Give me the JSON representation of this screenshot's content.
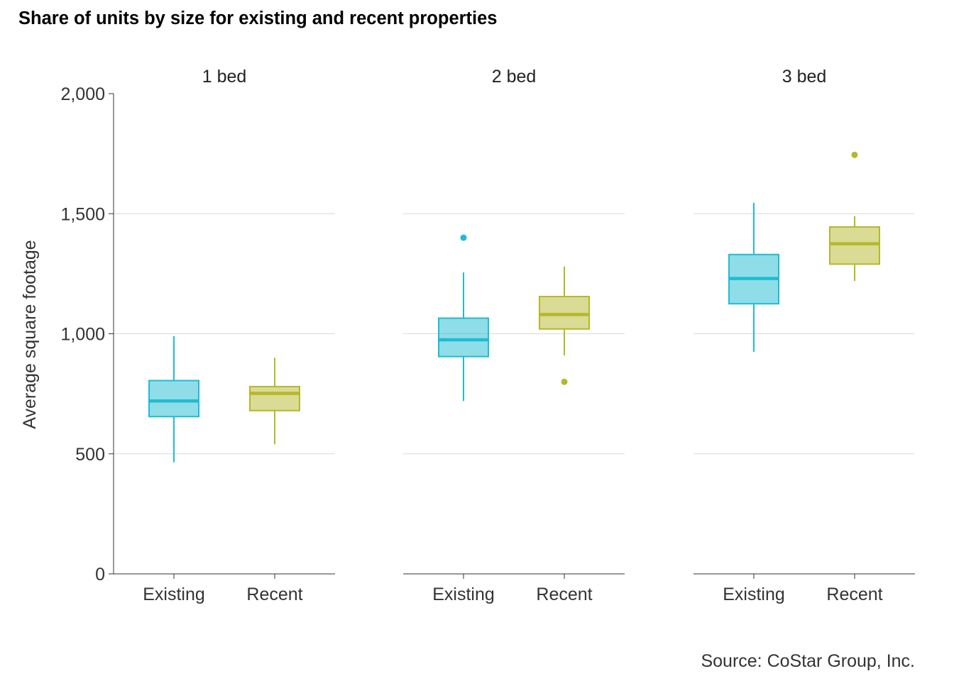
{
  "title": "Share of units by size for existing and recent properties",
  "source": "Source: CoStar Group, Inc.",
  "colors": {
    "Existing": "#1fbcd2",
    "Recent": "#b5b82a",
    "grid": "#d9d9d9",
    "axis": "#333333"
  },
  "chart_data": {
    "type": "boxplot",
    "ylabel": "Average square footage",
    "ylim": [
      0,
      2000
    ],
    "yticks": [
      0,
      500,
      1000,
      1500,
      2000
    ],
    "ytick_labels": [
      "0",
      "500",
      "1,000",
      "1,500",
      "2,000"
    ],
    "categories": [
      "Existing",
      "Recent"
    ],
    "grid": "horizontal",
    "panels": [
      {
        "label": "1 bed",
        "boxes": [
          {
            "name": "Existing",
            "min": 465,
            "q1": 655,
            "median": 720,
            "q3": 805,
            "max": 990,
            "outliers": []
          },
          {
            "name": "Recent",
            "min": 540,
            "q1": 680,
            "median": 752,
            "q3": 780,
            "max": 900,
            "outliers": []
          }
        ]
      },
      {
        "label": "2 bed",
        "boxes": [
          {
            "name": "Existing",
            "min": 720,
            "q1": 905,
            "median": 975,
            "q3": 1065,
            "max": 1255,
            "outliers": [
              1400
            ]
          },
          {
            "name": "Recent",
            "min": 910,
            "q1": 1020,
            "median": 1080,
            "q3": 1155,
            "max": 1280,
            "outliers": [
              800
            ]
          }
        ]
      },
      {
        "label": "3 bed",
        "boxes": [
          {
            "name": "Existing",
            "min": 925,
            "q1": 1125,
            "median": 1230,
            "q3": 1330,
            "max": 1545,
            "outliers": []
          },
          {
            "name": "Recent",
            "min": 1220,
            "q1": 1290,
            "median": 1375,
            "q3": 1445,
            "max": 1490,
            "outliers": [
              1745
            ]
          }
        ]
      }
    ]
  }
}
